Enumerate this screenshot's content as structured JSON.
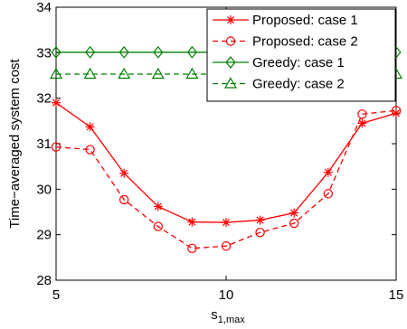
{
  "chart_data": {
    "type": "line",
    "title": "",
    "xlabel": "s",
    "xlabel_subscript": "1,max",
    "ylabel": "Time−averaged system cost",
    "xlim": [
      5,
      15
    ],
    "ylim": [
      28,
      34
    ],
    "xticks": [
      5,
      10,
      15
    ],
    "yticks": [
      28,
      29,
      30,
      31,
      32,
      33,
      34
    ],
    "grid": false,
    "legend_position": "top-right",
    "x": [
      5,
      6,
      7,
      8,
      9,
      10,
      11,
      12,
      13,
      14,
      15
    ],
    "series": [
      {
        "name": "Proposed: case 1",
        "color": "#ff0000",
        "dash": "solid",
        "marker": "asterisk",
        "values": [
          31.9,
          31.37,
          30.35,
          29.62,
          29.28,
          29.27,
          29.32,
          29.48,
          30.37,
          31.45,
          31.67
        ]
      },
      {
        "name": "Proposed: case 2",
        "color": "#ff0000",
        "dash": "dashed",
        "marker": "circle",
        "values": [
          30.93,
          30.87,
          29.77,
          29.18,
          28.7,
          28.75,
          29.05,
          29.25,
          29.9,
          31.65,
          31.73
        ]
      },
      {
        "name": "Greedy: case 1",
        "color": "#008000",
        "dash": "solid",
        "marker": "diamond",
        "values": [
          33.01,
          33.01,
          33.01,
          33.01,
          33.01,
          33.01,
          33.01,
          33.01,
          33.01,
          33.01,
          33.01
        ]
      },
      {
        "name": "Greedy: case 2",
        "color": "#008000",
        "dash": "dashed",
        "marker": "triangle",
        "values": [
          32.53,
          32.53,
          32.53,
          32.53,
          32.53,
          32.53,
          32.53,
          32.53,
          32.53,
          32.53,
          32.53
        ]
      }
    ]
  }
}
